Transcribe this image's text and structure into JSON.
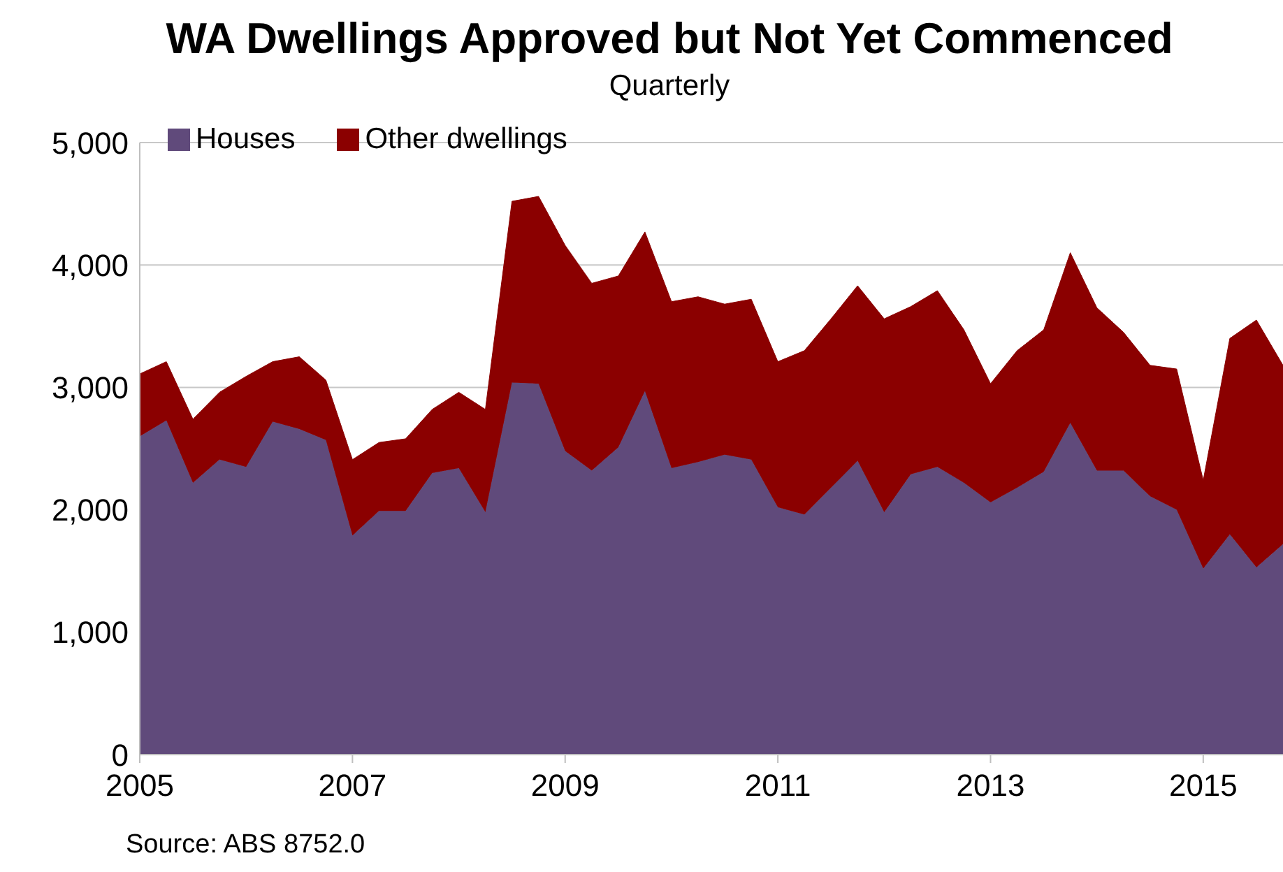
{
  "chart_data": {
    "type": "area",
    "title": "WA Dwellings Approved but Not Yet Commenced",
    "subtitle": "Quarterly",
    "annotations": [
      "Source: ABS 8752.0"
    ],
    "x": [
      2005,
      2005.25,
      2005.5,
      2005.75,
      2006,
      2006.25,
      2006.5,
      2006.75,
      2007,
      2007.25,
      2007.5,
      2007.75,
      2008,
      2008.25,
      2008.5,
      2008.75,
      2009,
      2009.25,
      2009.5,
      2009.75,
      2010,
      2010.25,
      2010.5,
      2010.75,
      2011,
      2011.25,
      2011.5,
      2011.75,
      2012,
      2012.25,
      2012.5,
      2012.75,
      2013,
      2013.25,
      2013.5,
      2013.75,
      2014,
      2014.25,
      2014.5,
      2014.75,
      2015,
      2015.25,
      2015.5,
      2015.75
    ],
    "series": [
      {
        "name": "Houses",
        "color": "#604a7b",
        "values": [
          2600,
          2730,
          2220,
          2410,
          2350,
          2720,
          2660,
          2570,
          1790,
          1990,
          1990,
          2300,
          2340,
          1980,
          3040,
          3030,
          2480,
          2320,
          2510,
          2970,
          2340,
          2390,
          2450,
          2410,
          2020,
          1960,
          2180,
          2400,
          1980,
          2290,
          2350,
          2220,
          2060,
          2180,
          2310,
          2710,
          2320,
          2320,
          2110,
          2000,
          1520,
          1800,
          1530,
          1720
        ]
      },
      {
        "name": "Other dwellings",
        "color": "#8b0000",
        "values": [
          510,
          480,
          520,
          550,
          740,
          490,
          590,
          490,
          620,
          560,
          590,
          520,
          620,
          840,
          1480,
          1530,
          1680,
          1530,
          1400,
          1300,
          1360,
          1350,
          1230,
          1310,
          1190,
          1340,
          1380,
          1430,
          1580,
          1370,
          1440,
          1250,
          970,
          1120,
          1160,
          1390,
          1330,
          1130,
          1070,
          1150,
          720,
          1600,
          2020,
          1460
        ]
      }
    ],
    "stacked": true,
    "xlim": [
      2005,
      2015.75
    ],
    "xticks": [
      2005,
      2007,
      2009,
      2011,
      2013,
      2015
    ],
    "ylim": [
      0,
      5000
    ],
    "yticks": [
      {
        "value": 0,
        "label": "0"
      },
      {
        "value": 1000,
        "label": "1,000"
      },
      {
        "value": 2000,
        "label": "2,000"
      },
      {
        "value": 3000,
        "label": "3,000"
      },
      {
        "value": 4000,
        "label": "4,000"
      },
      {
        "value": 5000,
        "label": "5,000"
      }
    ],
    "grid": "y",
    "legend": "top left"
  }
}
